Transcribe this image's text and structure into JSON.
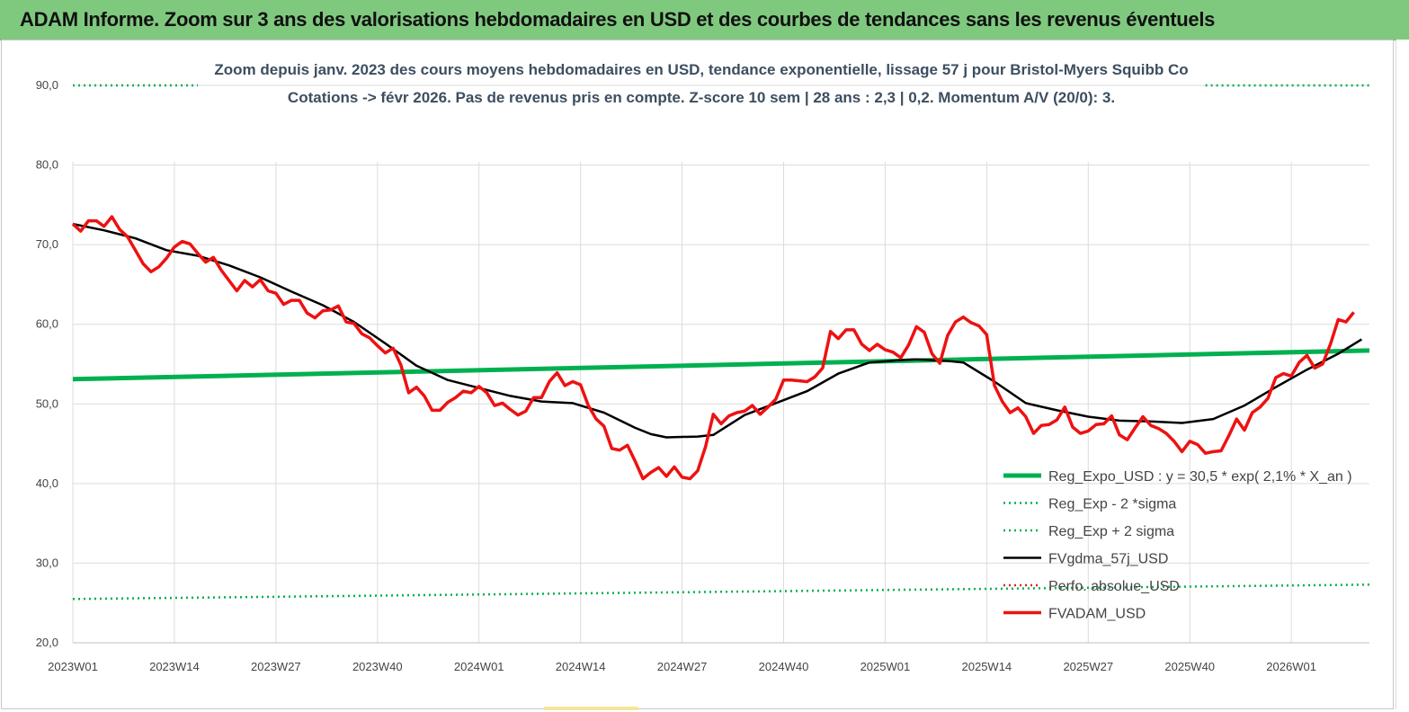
{
  "banner": {
    "title": "ADAM Informe. Zoom sur 3 ans des valorisations hebdomadaires en USD et des courbes de tendances sans les revenus éventuels",
    "color": "#7fc97f"
  },
  "chart_data": {
    "type": "line",
    "title": "Zoom depuis janv. 2023 des cours moyens hebdomadaires en USD, tendance exponentielle, lissage 57 j pour Bristol-Myers Squibb Co",
    "subtitle": "Cotations -> févr 2026. Pas de revenus pris en compte. Z-score 10 sem | 28 ans : 2,3 | 0,2. Momentum A/V (20/0): 3.",
    "xlabel": "",
    "ylabel": "",
    "ylim": [
      20,
      90
    ],
    "yticks": [
      "20,0",
      "30,0",
      "40,0",
      "50,0",
      "60,0",
      "70,0",
      "80,0",
      "90,0"
    ],
    "xtick_labels": [
      "2023W01",
      "2023W14",
      "2023W27",
      "2023W40",
      "2024W01",
      "2024W14",
      "2024W27",
      "2024W40",
      "2025W01",
      "2025W14",
      "2025W27",
      "2025W40",
      "2026W01"
    ],
    "xtick_weeks": [
      0,
      13,
      26,
      39,
      52,
      65,
      78,
      91,
      104,
      117,
      130,
      143,
      156
    ],
    "xlim": [
      0,
      166
    ],
    "grid": true,
    "legend_position": "bottom-right",
    "series": [
      {
        "name": "Reg_Expo_USD : y = 30,5 * exp( 2,1% *  X_an )",
        "color": "#00b050",
        "style": "thick",
        "points": [
          [
            0,
            53.1
          ],
          [
            166,
            56.7
          ]
        ]
      },
      {
        "name": "Reg_Exp - 2 *sigma",
        "color": "#00b050",
        "style": "dotted",
        "points": [
          [
            0,
            25.5
          ],
          [
            166,
            27.3
          ]
        ]
      },
      {
        "name": "Reg_Exp + 2 sigma",
        "color": "#00b050",
        "style": "dotted",
        "points": [
          [
            0,
            90.0
          ],
          [
            16,
            90.0
          ],
          [
            145,
            90.0
          ],
          [
            166,
            90.0
          ]
        ],
        "gap": [
          16,
          145
        ]
      },
      {
        "name": "FVgdma_57j_USD",
        "color": "#000000",
        "style": "solid",
        "points": [
          [
            0,
            72.6
          ],
          [
            4,
            71.8
          ],
          [
            8,
            70.8
          ],
          [
            12,
            69.3
          ],
          [
            16,
            68.6
          ],
          [
            20,
            67.4
          ],
          [
            24,
            65.9
          ],
          [
            28,
            64.1
          ],
          [
            32,
            62.4
          ],
          [
            36,
            60.3
          ],
          [
            40,
            57.6
          ],
          [
            44,
            54.8
          ],
          [
            48,
            53.0
          ],
          [
            52,
            52.0
          ],
          [
            56,
            51.0
          ],
          [
            60,
            50.3
          ],
          [
            64,
            50.1
          ],
          [
            68,
            48.9
          ],
          [
            72,
            47.0
          ],
          [
            74,
            46.2
          ],
          [
            76,
            45.8
          ],
          [
            80,
            45.9
          ],
          [
            82,
            46.1
          ],
          [
            86,
            48.6
          ],
          [
            90,
            50.1
          ],
          [
            94,
            51.6
          ],
          [
            98,
            53.8
          ],
          [
            102,
            55.2
          ],
          [
            106,
            55.5
          ],
          [
            108,
            55.6
          ],
          [
            112,
            55.4
          ],
          [
            114,
            55.2
          ],
          [
            118,
            52.8
          ],
          [
            122,
            50.1
          ],
          [
            126,
            49.2
          ],
          [
            130,
            48.4
          ],
          [
            134,
            47.9
          ],
          [
            138,
            47.8
          ],
          [
            142,
            47.6
          ],
          [
            146,
            48.1
          ],
          [
            150,
            49.8
          ],
          [
            154,
            52.1
          ],
          [
            158,
            54.3
          ],
          [
            162,
            56.3
          ],
          [
            165,
            58.1
          ]
        ]
      },
      {
        "name": "Perfo. absolue_USD",
        "color": "#e02020",
        "style": "dotted",
        "points": []
      },
      {
        "name": "FVADAM_USD",
        "color": "#ee1111",
        "style": "solid",
        "points": [
          [
            0,
            72.6
          ],
          [
            1,
            71.7
          ],
          [
            2,
            73.0
          ],
          [
            3,
            73.0
          ],
          [
            4,
            72.3
          ],
          [
            5,
            73.5
          ],
          [
            6,
            71.9
          ],
          [
            7,
            71.0
          ],
          [
            8,
            69.3
          ],
          [
            9,
            67.6
          ],
          [
            10,
            66.6
          ],
          [
            11,
            67.2
          ],
          [
            12,
            68.3
          ],
          [
            13,
            69.7
          ],
          [
            14,
            70.4
          ],
          [
            15,
            70.1
          ],
          [
            16,
            68.9
          ],
          [
            17,
            67.8
          ],
          [
            18,
            68.4
          ],
          [
            19,
            66.8
          ],
          [
            20,
            65.5
          ],
          [
            21,
            64.2
          ],
          [
            22,
            65.5
          ],
          [
            23,
            64.7
          ],
          [
            24,
            65.6
          ],
          [
            25,
            64.2
          ],
          [
            26,
            63.9
          ],
          [
            27,
            62.5
          ],
          [
            28,
            63.0
          ],
          [
            29,
            63.0
          ],
          [
            30,
            61.4
          ],
          [
            31,
            60.8
          ],
          [
            32,
            61.7
          ],
          [
            33,
            61.8
          ],
          [
            34,
            62.3
          ],
          [
            35,
            60.3
          ],
          [
            36,
            60.1
          ],
          [
            37,
            58.8
          ],
          [
            38,
            58.3
          ],
          [
            39,
            57.3
          ],
          [
            40,
            56.4
          ],
          [
            41,
            57.0
          ],
          [
            42,
            54.9
          ],
          [
            43,
            51.4
          ],
          [
            44,
            52.1
          ],
          [
            45,
            51.0
          ],
          [
            46,
            49.2
          ],
          [
            47,
            49.2
          ],
          [
            48,
            50.2
          ],
          [
            49,
            50.8
          ],
          [
            50,
            51.6
          ],
          [
            51,
            51.4
          ],
          [
            52,
            52.2
          ],
          [
            53,
            51.4
          ],
          [
            54,
            49.8
          ],
          [
            55,
            50.1
          ],
          [
            56,
            49.3
          ],
          [
            57,
            48.6
          ],
          [
            58,
            49.1
          ],
          [
            59,
            50.8
          ],
          [
            60,
            50.8
          ],
          [
            61,
            52.8
          ],
          [
            62,
            53.9
          ],
          [
            63,
            52.3
          ],
          [
            64,
            52.8
          ],
          [
            65,
            52.4
          ],
          [
            66,
            49.8
          ],
          [
            67,
            48.1
          ],
          [
            68,
            47.2
          ],
          [
            69,
            44.4
          ],
          [
            70,
            44.2
          ],
          [
            71,
            44.8
          ],
          [
            72,
            42.8
          ],
          [
            73,
            40.6
          ],
          [
            74,
            41.4
          ],
          [
            75,
            42.0
          ],
          [
            76,
            40.9
          ],
          [
            77,
            42.1
          ],
          [
            78,
            40.8
          ],
          [
            79,
            40.6
          ],
          [
            80,
            41.6
          ],
          [
            81,
            44.6
          ],
          [
            82,
            48.7
          ],
          [
            83,
            47.5
          ],
          [
            84,
            48.5
          ],
          [
            85,
            48.9
          ],
          [
            86,
            49.1
          ],
          [
            87,
            49.8
          ],
          [
            88,
            48.7
          ],
          [
            89,
            49.6
          ],
          [
            90,
            50.6
          ],
          [
            91,
            53.0
          ],
          [
            92,
            53.0
          ],
          [
            93,
            52.9
          ],
          [
            94,
            52.8
          ],
          [
            95,
            53.4
          ],
          [
            96,
            54.5
          ],
          [
            97,
            59.1
          ],
          [
            98,
            58.2
          ],
          [
            99,
            59.3
          ],
          [
            100,
            59.3
          ],
          [
            101,
            57.5
          ],
          [
            102,
            56.7
          ],
          [
            103,
            57.5
          ],
          [
            104,
            56.8
          ],
          [
            105,
            56.5
          ],
          [
            106,
            55.8
          ],
          [
            107,
            57.4
          ],
          [
            108,
            59.7
          ],
          [
            109,
            59.0
          ],
          [
            110,
            56.3
          ],
          [
            111,
            55.1
          ],
          [
            112,
            58.6
          ],
          [
            113,
            60.3
          ],
          [
            114,
            60.9
          ],
          [
            115,
            60.2
          ],
          [
            116,
            59.8
          ],
          [
            117,
            58.7
          ],
          [
            118,
            52.3
          ],
          [
            119,
            50.3
          ],
          [
            120,
            48.9
          ],
          [
            121,
            49.5
          ],
          [
            122,
            48.4
          ],
          [
            123,
            46.3
          ],
          [
            124,
            47.3
          ],
          [
            125,
            47.4
          ],
          [
            126,
            48.0
          ],
          [
            127,
            49.6
          ],
          [
            128,
            47.1
          ],
          [
            129,
            46.3
          ],
          [
            130,
            46.6
          ],
          [
            131,
            47.4
          ],
          [
            132,
            47.5
          ],
          [
            133,
            48.5
          ],
          [
            134,
            46.1
          ],
          [
            135,
            45.5
          ],
          [
            136,
            47.0
          ],
          [
            137,
            48.4
          ],
          [
            138,
            47.3
          ],
          [
            139,
            46.9
          ],
          [
            140,
            46.3
          ],
          [
            141,
            45.3
          ],
          [
            142,
            44.0
          ],
          [
            143,
            45.3
          ],
          [
            144,
            44.9
          ],
          [
            145,
            43.8
          ],
          [
            146,
            44.0
          ],
          [
            147,
            44.1
          ],
          [
            148,
            46.0
          ],
          [
            149,
            48.1
          ],
          [
            150,
            46.7
          ],
          [
            151,
            48.9
          ],
          [
            152,
            49.6
          ],
          [
            153,
            50.7
          ],
          [
            154,
            53.3
          ],
          [
            155,
            53.8
          ],
          [
            156,
            53.5
          ],
          [
            157,
            55.2
          ],
          [
            158,
            56.1
          ],
          [
            159,
            54.5
          ],
          [
            160,
            55.0
          ],
          [
            161,
            57.5
          ],
          [
            162,
            60.6
          ],
          [
            163,
            60.3
          ],
          [
            164,
            61.5
          ]
        ]
      }
    ]
  }
}
